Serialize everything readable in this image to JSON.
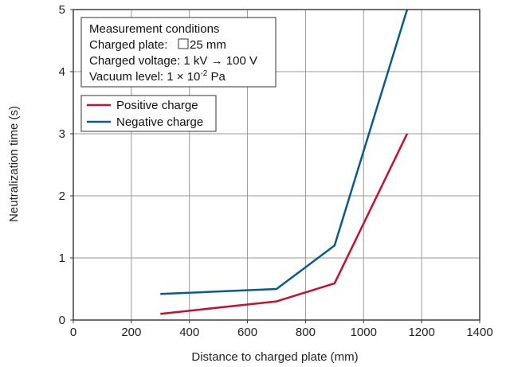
{
  "chart_data": {
    "type": "line",
    "xlabel": "Distance to charged plate (mm)",
    "ylabel": "Neutralization time (s)",
    "xlim": [
      0,
      1400
    ],
    "ylim": [
      0,
      5
    ],
    "xticks": [
      "0",
      "200",
      "400",
      "600",
      "800",
      "1000",
      "1200",
      "1400"
    ],
    "yticks": [
      "0",
      "1",
      "2",
      "3",
      "4",
      "5"
    ],
    "grid": true,
    "legend_position": "top-left",
    "series": [
      {
        "name": "Positive charge",
        "color": "#c8102e",
        "x": [
          300,
          700,
          900,
          1150
        ],
        "y": [
          0.1,
          0.3,
          0.59,
          3.0
        ]
      },
      {
        "name": "Negative charge",
        "color": "#0b5a8c",
        "x": [
          300,
          700,
          900,
          1150
        ],
        "y": [
          0.42,
          0.5,
          1.2,
          5.0
        ]
      }
    ],
    "annotation": {
      "title": "Measurement conditions",
      "line_plate_prefix": "Charged plate: ",
      "line_plate_value": "25 mm",
      "line_voltage": "Charged voltage: 1 kV → 100 V",
      "line_vacuum_prefix": "Vacuum level: 1 × 10",
      "line_vacuum_exp": "-2",
      "line_vacuum_suffix": " Pa"
    }
  }
}
